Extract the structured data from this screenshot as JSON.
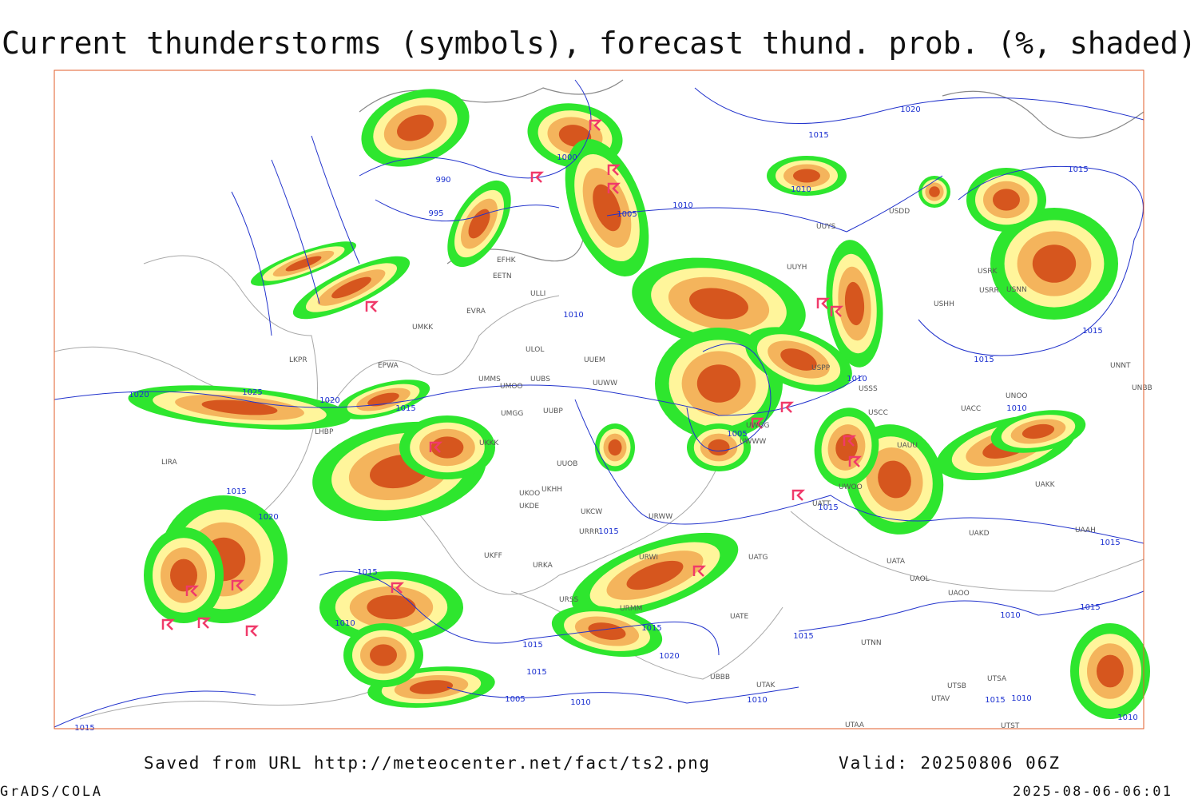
{
  "header": {
    "title": "Current thunderstorms (symbols), forecast thund. prob. (%, shaded)"
  },
  "footer": {
    "source": "Saved from URL http://meteocenter.net/fact/ts2.png",
    "valid": "Valid: 20250806 06Z",
    "software": "GrADS/COLA",
    "timestamp": "2025-08-06-06:01"
  },
  "isobar_labels": [
    1020,
    1015,
    1000,
    990,
    995,
    1010,
    1005,
    1010,
    1015,
    1015,
    1015,
    1010,
    1010,
    1020,
    1025,
    1020,
    1015,
    1005,
    1015,
    1020,
    1015,
    1015,
    1015,
    1015,
    1010,
    1015,
    1015,
    1020,
    1015,
    1005,
    1010,
    1015,
    1010,
    1015,
    1010,
    1015,
    1010,
    1010,
    1015,
    1010
  ],
  "stations": [
    "UUYS",
    "UUYH",
    "USDD",
    "EFHK",
    "EETN",
    "EVRA",
    "ULOL",
    "EPWA",
    "LKPR",
    "UMMS",
    "UUBS",
    "UMOO",
    "UUWW",
    "UUEM",
    "UMGG",
    "UUBP",
    "UKKK",
    "UUOB",
    "UKHH",
    "UKOO",
    "UKDE",
    "UKCW",
    "URRR",
    "URWW",
    "URWI",
    "URKA",
    "URSS",
    "URMM",
    "UBBB",
    "UTAK",
    "UATE",
    "UATG",
    "UATA",
    "UAOL",
    "UAOO",
    "UTNN",
    "USSS",
    "USCC",
    "UAUU",
    "UACC",
    "UAKK",
    "UAKD",
    "UAAH",
    "USHH",
    "USRR",
    "USRK",
    "USNN",
    "UNNT",
    "UNBB",
    "UNOO",
    "USPP",
    "LHBP",
    "LIRA",
    "UKFF",
    "UMKK",
    "ULLI",
    "UTSA",
    "UTSB",
    "UTAV",
    "UTAA",
    "UTST",
    "UWWW",
    "UWOO",
    "UATT",
    "UWGG"
  ]
}
